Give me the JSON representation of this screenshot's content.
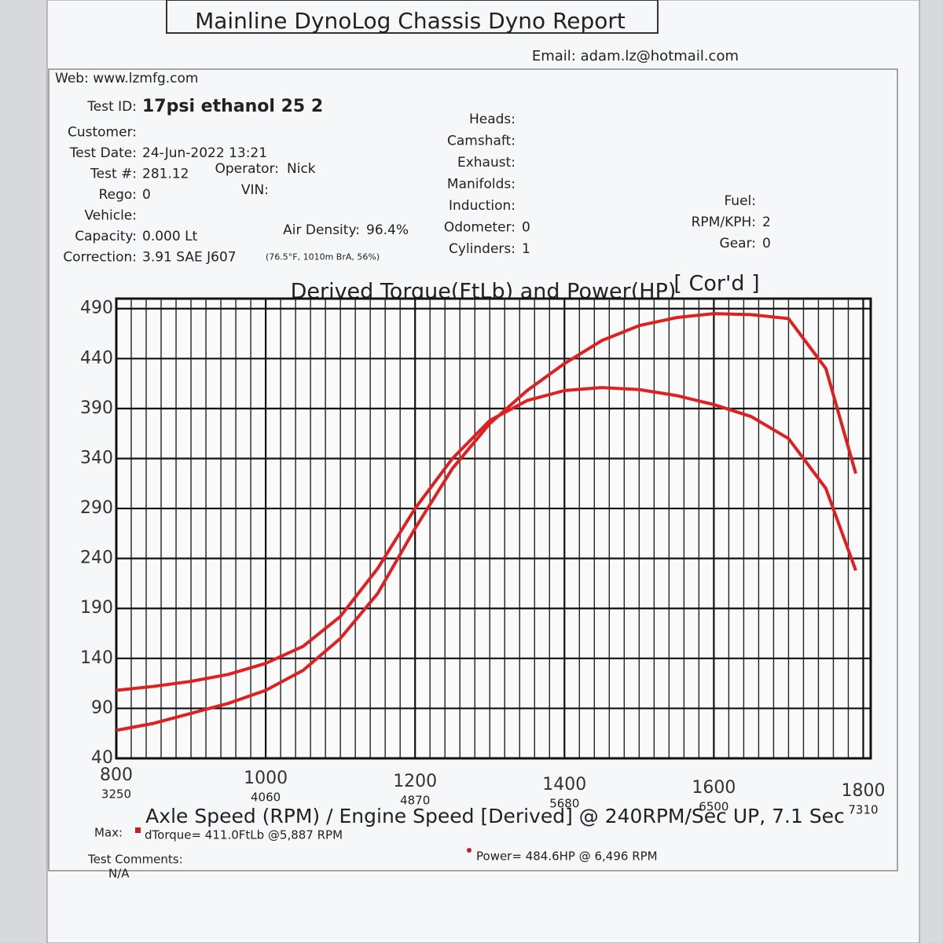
{
  "report": {
    "title": "Mainline DynoLog Chassis Dyno Report",
    "web": "Web: www.lzmfg.com",
    "email": "Email: adam.lz@hotmail.com",
    "left_fields": [
      {
        "label": "Test ID:",
        "value": "17psi ethanol 25 2"
      },
      {
        "label": "Customer:"
      },
      {
        "label": "Test Date:",
        "value": "24-Jun-2022 13:21"
      },
      {
        "label": "Test #:",
        "value": "281.12"
      },
      {
        "label": "Rego:",
        "value": "0"
      },
      {
        "label": "Vehicle:"
      },
      {
        "label": "Capacity:",
        "value": "0.000 Lt"
      },
      {
        "label": "Correction:",
        "value": "3.91 SAE J607",
        "note": "(76.5°F, 1010m BrA, 56%)"
      }
    ],
    "operator": {
      "label": "Operator:",
      "value": "Nick"
    },
    "vin": {
      "label": "VIN:"
    },
    "air_density": {
      "label": "Air Density:",
      "value": "96.4%"
    },
    "mid_fields": [
      {
        "label": "Heads:"
      },
      {
        "label": "Camshaft:"
      },
      {
        "label": "Exhaust:"
      },
      {
        "label": "Manifolds:"
      },
      {
        "label": "Induction:"
      },
      {
        "label": "Odometer:",
        "value": "0"
      },
      {
        "label": "Cylinders:",
        "value": "1"
      }
    ],
    "right_fields": [
      {
        "label": "Fuel:"
      },
      {
        "label": "RPM/KPH:",
        "value": "2"
      },
      {
        "label": "Gear:",
        "value": "0"
      }
    ],
    "max_label": "Max:",
    "max_torque": "dTorque= 411.0FtLb @5,887 RPM",
    "max_power": "Power= 484.6HP @ 6,496 RPM",
    "comments_label": "Test Comments:",
    "comments": "N/A"
  },
  "chart_data": {
    "type": "line",
    "title": "Derived Torque(FtLb) and Power(HP)",
    "subtitle": "[ Cor'd ]",
    "x_label": "Axle Speed (RPM) / Engine Speed [Derived] @ 240RPM/Sec UP, 7.1 Sec",
    "x": [
      800,
      850,
      900,
      950,
      1000,
      1050,
      1100,
      1150,
      1200,
      1250,
      1300,
      1350,
      1400,
      1450,
      1500,
      1550,
      1600,
      1650,
      1700,
      1750,
      1790
    ],
    "series": [
      {
        "color": "#e02020",
        "values": [
          108,
          112,
          117,
          124,
          135,
          152,
          182,
          230,
          290,
          340,
          378,
          398,
          408,
          411,
          409,
          403,
          394,
          382,
          360,
          310,
          228
        ]
      },
      {
        "color": "#e02020",
        "values": [
          68,
          75,
          85,
          95,
          108,
          128,
          160,
          205,
          270,
          330,
          375,
          408,
          435,
          458,
          473,
          481,
          485,
          484,
          480,
          430,
          325
        ]
      }
    ],
    "xlim": [
      800,
      1810
    ],
    "ylim": [
      40,
      500
    ],
    "xticks": [
      800,
      1000,
      1200,
      1400,
      1600,
      1800
    ],
    "x2labels": [
      "3250",
      "4060",
      "4870",
      "5680",
      "6500",
      "7310"
    ],
    "yticks": [
      40,
      90,
      140,
      190,
      240,
      290,
      340,
      390,
      440,
      490
    ],
    "x_minor_step": 20,
    "grid": true
  }
}
